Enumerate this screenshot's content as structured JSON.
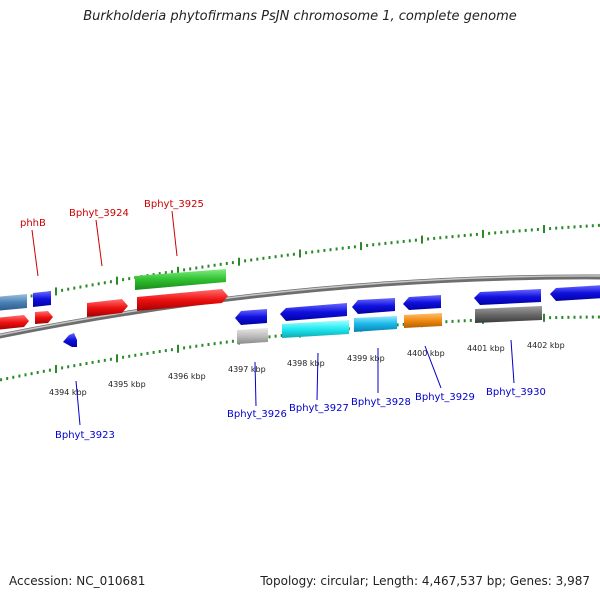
{
  "title": "Burkholderia phytofirmans PsJN chromosome 1, complete genome",
  "footer": {
    "accession": "Accession: NC_010681",
    "summary": "Topology: circular; Length: 4,467,537 bp; Genes: 3,987"
  },
  "colors": {
    "backbone": "#8a8a8a",
    "tick": "#2a8a2a",
    "top_label": "#cc0000",
    "bottom_label": "#0000cc"
  },
  "scale_labels": [
    "4394 kbp",
    "4395 kbp",
    "4396 kbp",
    "4397 kbp",
    "4398 kbp",
    "4399 kbp",
    "4400 kbp",
    "4401 kbp",
    "4402 kbp"
  ],
  "top_gene_labels": [
    "phhB",
    "Bphyt_3924",
    "Bphyt_3925"
  ],
  "bottom_gene_labels": [
    "Bphyt_3923",
    "Bphyt_3926",
    "Bphyt_3927",
    "Bphyt_3928",
    "Bphyt_3929",
    "Bphyt_3930"
  ]
}
